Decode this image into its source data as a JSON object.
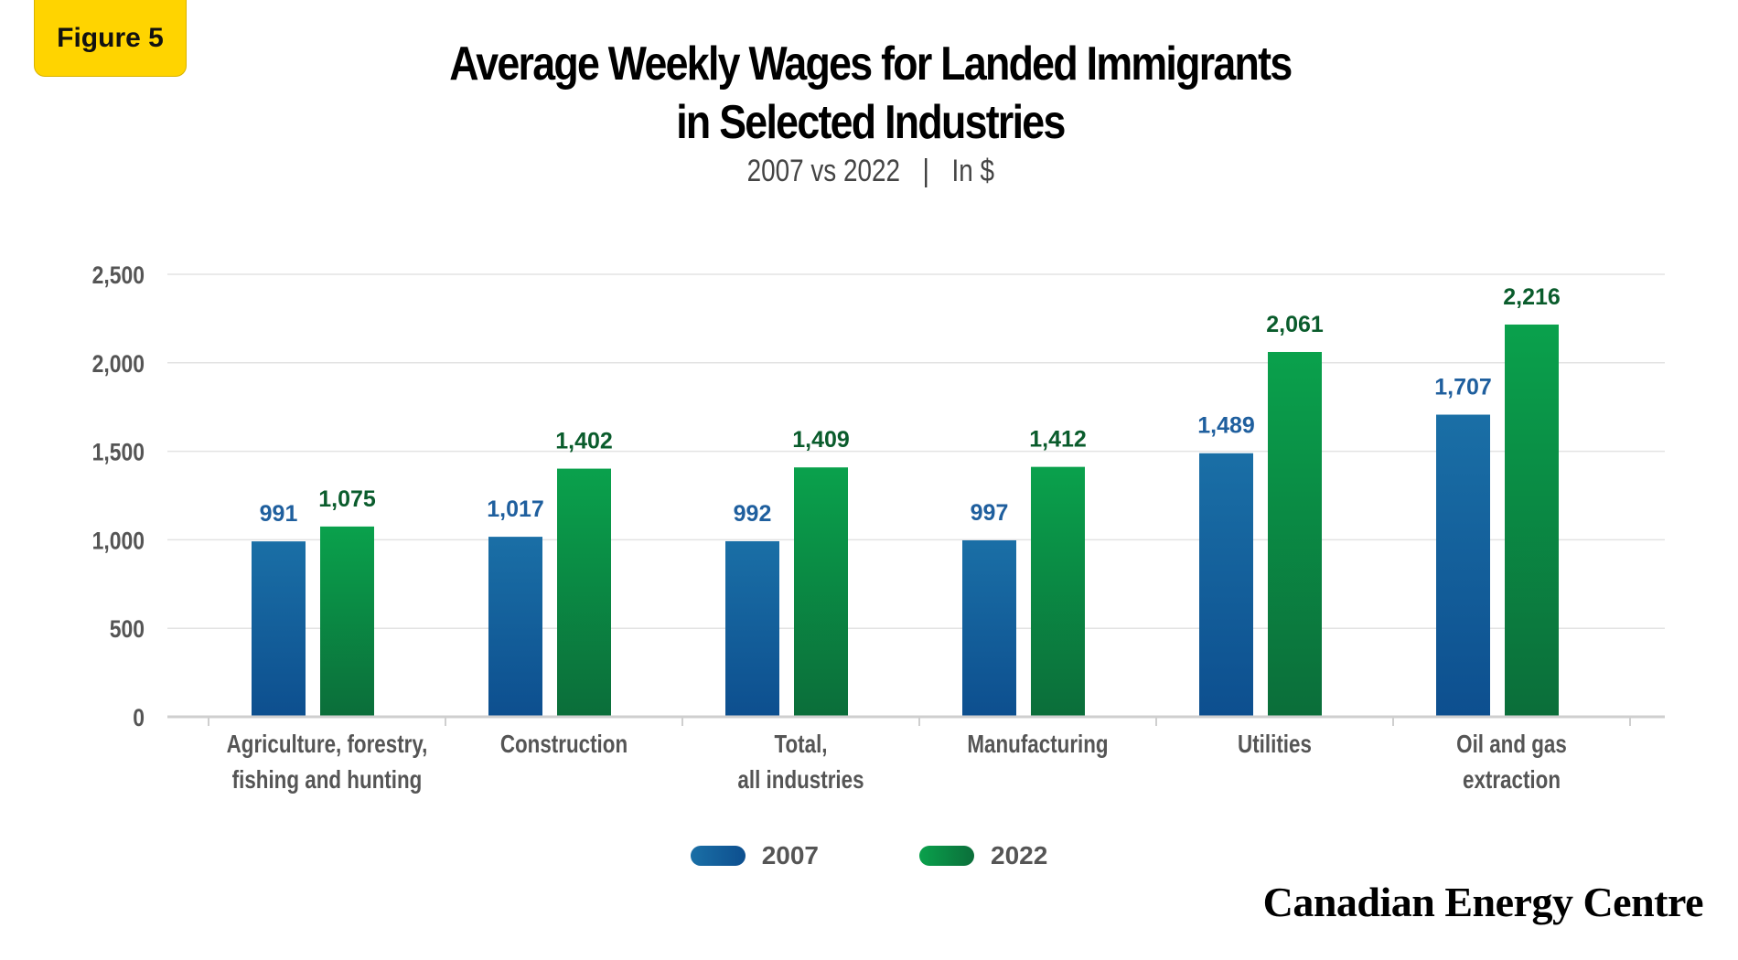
{
  "badge": "Figure 5",
  "title_line1": "Average Weekly Wages for Landed Immigrants",
  "title_line2": "in Selected Industries",
  "subtitle_years": "2007 vs 2022",
  "subtitle_separator": "|",
  "subtitle_units": "In $",
  "brand": "Canadian Energy Centre",
  "colors": {
    "series_2007": "#1a6fa6",
    "series_2007_dark": "#0d4f8f",
    "series_2022": "#0aa14c",
    "series_2022_dark": "#0b6e3a",
    "label_2007": "#1f5f9e",
    "label_2022": "#0a5c2c"
  },
  "chart_data": {
    "type": "bar",
    "title": "Average Weekly Wages for Landed Immigrants in Selected Industries",
    "subtitle": "2007 vs 2022 | In $",
    "categories": [
      [
        "Agriculture, forestry,",
        "fishing and hunting"
      ],
      [
        "Construction"
      ],
      [
        "Total,",
        "all industries"
      ],
      [
        "Manufacturing"
      ],
      [
        "Utilities"
      ],
      [
        "Oil and gas",
        "extraction"
      ]
    ],
    "series": [
      {
        "name": "2007",
        "values": [
          991,
          1017,
          992,
          997,
          1489,
          1707
        ],
        "labels": [
          "991",
          "1,017",
          "992",
          "997",
          "1,489",
          "1,707"
        ]
      },
      {
        "name": "2022",
        "values": [
          1075,
          1402,
          1409,
          1412,
          2061,
          2216
        ],
        "labels": [
          "1,075",
          "1,402",
          "1,409",
          "1,412",
          "2,061",
          "2,216"
        ]
      }
    ],
    "yticks": [
      "0",
      "500",
      "1,000",
      "1,500",
      "2,000",
      "2,500"
    ],
    "ylim": [
      0,
      2500
    ],
    "grid": true,
    "legend": "bottom-center"
  }
}
